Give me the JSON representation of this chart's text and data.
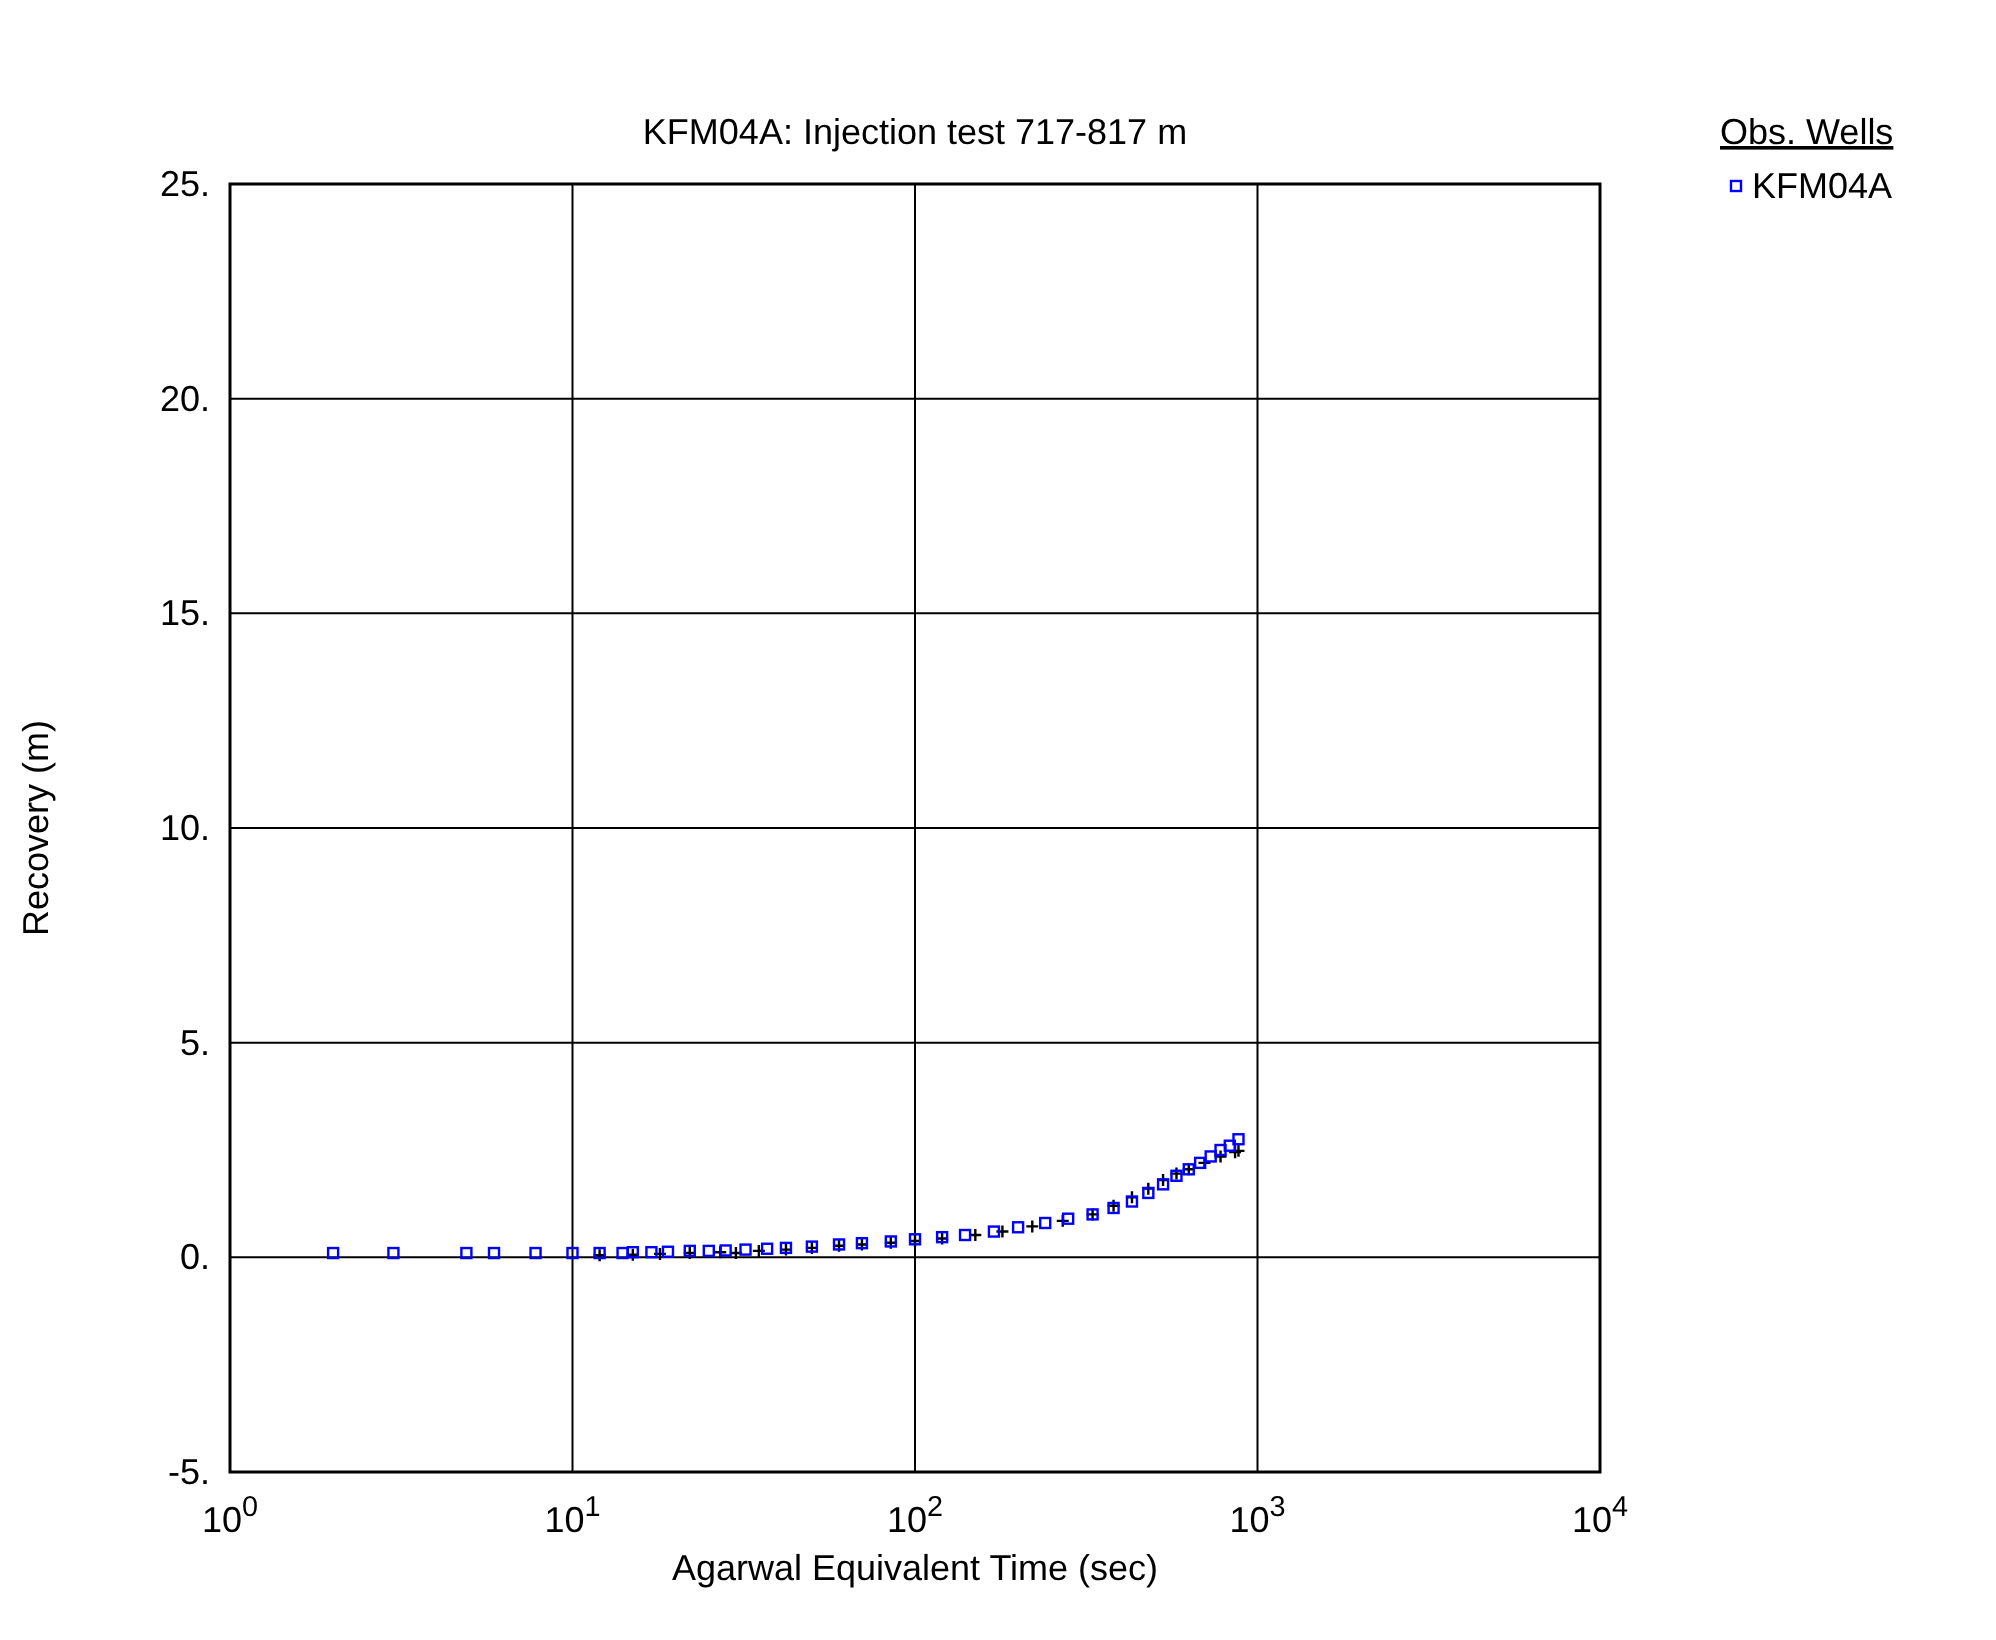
{
  "chart_data": {
    "type": "scatter",
    "title": "KFM04A: Injection test 717-817 m",
    "xlabel": "Agarwal Equivalent Time (sec)",
    "ylabel": "Recovery (m)",
    "legend_title": "Obs. Wells",
    "legend": "top right",
    "log": "x",
    "grid": true,
    "xlim": [
      1,
      10000
    ],
    "xticks": [
      {
        "value": 1,
        "label": "10$^{0}$"
      },
      {
        "value": 10,
        "label": "10$^{1}$"
      },
      {
        "value": 100,
        "label": "10$^{2}$"
      },
      {
        "value": 1000,
        "label": "10$^{3}$"
      },
      {
        "value": 10000,
        "label": "10$^{4}$"
      }
    ],
    "ylim": [
      -5,
      25
    ],
    "yticks": [
      {
        "value": -5,
        "label": "-5."
      },
      {
        "value": 0,
        "label": "0."
      },
      {
        "value": 5,
        "label": "5."
      },
      {
        "value": 10,
        "label": "10."
      },
      {
        "value": 15,
        "label": "15."
      },
      {
        "value": 20,
        "label": "20."
      },
      {
        "value": 25,
        "label": "25."
      }
    ],
    "series": [
      {
        "name": "KFM04A",
        "color": "#0000ff",
        "marker": "square",
        "x": [
          2,
          3,
          4.9,
          5.9,
          7.8,
          10,
          12,
          14,
          15,
          17,
          19,
          22,
          25,
          28,
          32,
          37,
          42,
          50,
          60,
          70,
          85,
          100,
          120,
          140,
          170,
          200,
          240,
          280,
          330,
          380,
          430,
          480,
          530,
          580,
          630,
          680,
          730,
          780,
          830,
          880
        ],
        "values": [
          0.1,
          0.1,
          0.1,
          0.1,
          0.1,
          0.1,
          0.1,
          0.1,
          0.12,
          0.12,
          0.13,
          0.15,
          0.15,
          0.16,
          0.18,
          0.2,
          0.22,
          0.25,
          0.3,
          0.33,
          0.37,
          0.42,
          0.47,
          0.52,
          0.6,
          0.7,
          0.8,
          0.9,
          1.0,
          1.15,
          1.3,
          1.5,
          1.7,
          1.9,
          2.05,
          2.2,
          2.35,
          2.5,
          2.6,
          2.75
        ]
      },
      {
        "color": "#000000",
        "marker": "cross",
        "x": [
          12,
          15,
          18,
          22,
          27,
          30,
          35,
          42,
          50,
          60,
          70,
          85,
          100,
          120,
          150,
          180,
          220,
          270,
          330,
          380,
          430,
          480,
          530,
          580,
          630,
          700,
          780,
          860,
          880
        ],
        "values": [
          0.05,
          0.06,
          0.08,
          0.1,
          0.12,
          0.1,
          0.15,
          0.18,
          0.22,
          0.27,
          0.3,
          0.34,
          0.38,
          0.44,
          0.52,
          0.6,
          0.72,
          0.85,
          1.0,
          1.2,
          1.4,
          1.6,
          1.8,
          1.95,
          2.05,
          2.2,
          2.35,
          2.45,
          2.48
        ]
      }
    ]
  }
}
